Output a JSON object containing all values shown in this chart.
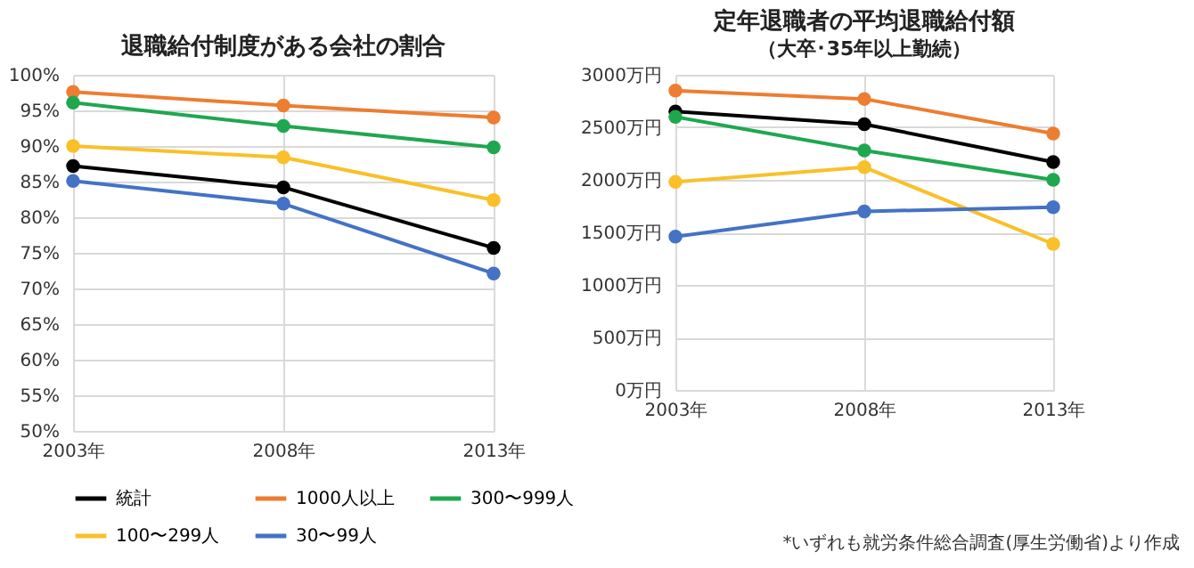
{
  "chart_data": [
    {
      "type": "line",
      "title": "退職給付制度がある会社の割合",
      "categories": [
        "2003年",
        "2008年",
        "2013年"
      ],
      "ylim": [
        50,
        100
      ],
      "yticks": [
        {
          "value": 50,
          "label": "50%"
        },
        {
          "value": 55,
          "label": "55%"
        },
        {
          "value": 60,
          "label": "60%"
        },
        {
          "value": 65,
          "label": "65%"
        },
        {
          "value": 70,
          "label": "70%"
        },
        {
          "value": 75,
          "label": "75%"
        },
        {
          "value": 80,
          "label": "80%"
        },
        {
          "value": 85,
          "label": "85%"
        },
        {
          "value": 90,
          "label": "90%"
        },
        {
          "value": 95,
          "label": "95%"
        },
        {
          "value": 100,
          "label": "100%"
        }
      ],
      "grid": true,
      "marker": "circle",
      "legend": "bottom",
      "series": [
        {
          "name": "統計",
          "color": "#000000",
          "values": [
            87.2,
            84.2,
            75.7
          ]
        },
        {
          "name": "1000人以上",
          "color": "#ed7d31",
          "values": [
            97.6,
            95.7,
            94.0
          ]
        },
        {
          "name": "300〜999人",
          "color": "#1fa750",
          "values": [
            96.1,
            92.8,
            89.8
          ]
        },
        {
          "name": "100〜299人",
          "color": "#f9c02a",
          "values": [
            90.0,
            88.4,
            82.4
          ]
        },
        {
          "name": "30〜99人",
          "color": "#4472c4",
          "values": [
            85.1,
            81.9,
            72.1
          ]
        }
      ]
    },
    {
      "type": "line",
      "title": "定年退職者の平均退職給付額",
      "subtitle": "（大卒･35年以上勤続）",
      "categories": [
        "2003年",
        "2008年",
        "2013年"
      ],
      "ylim": [
        0,
        3000
      ],
      "yticks": [
        {
          "value": 0,
          "label": "0万円"
        },
        {
          "value": 500,
          "label": "500万円"
        },
        {
          "value": 1000,
          "label": "1000万円"
        },
        {
          "value": 1500,
          "label": "1500万円"
        },
        {
          "value": 2000,
          "label": "2000万円"
        },
        {
          "value": 2500,
          "label": "2500万円"
        },
        {
          "value": 3000,
          "label": "3000万円"
        }
      ],
      "grid": true,
      "marker": "circle",
      "legend": "bottom",
      "annotations": [
        "*いずれも就労条件総合調査(厚生労働省)より作成"
      ],
      "series": [
        {
          "name": "統計",
          "color": "#000000",
          "values": [
            2650,
            2530,
            2170
          ]
        },
        {
          "name": "1000人以上",
          "color": "#ed7d31",
          "values": [
            2850,
            2770,
            2440
          ]
        },
        {
          "name": "300〜999人",
          "color": "#1fa750",
          "values": [
            2600,
            2280,
            2000
          ]
        },
        {
          "name": "100〜299人",
          "color": "#f9c02a",
          "values": [
            1980,
            2120,
            1390
          ]
        },
        {
          "name": "30〜99人",
          "color": "#4472c4",
          "values": [
            1460,
            1700,
            1740
          ]
        }
      ]
    }
  ]
}
